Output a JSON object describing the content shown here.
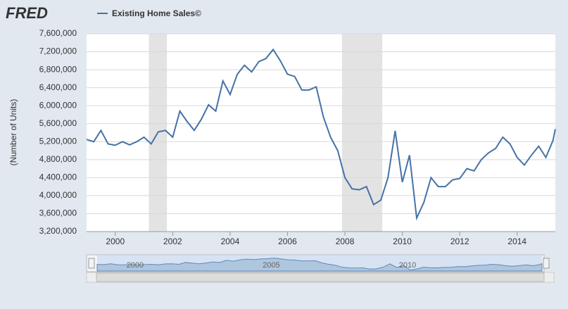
{
  "logo": "FRED",
  "chart_data": {
    "type": "line",
    "legend": "Existing Home Sales©",
    "y_label": "(Number of Units)",
    "series": [
      {
        "name": "Existing Home Sales©",
        "color": "#4572a7",
        "x": [
          1999.0,
          1999.25,
          1999.5,
          1999.75,
          2000.0,
          2000.25,
          2000.5,
          2000.75,
          2001.0,
          2001.25,
          2001.5,
          2001.75,
          2002.0,
          2002.25,
          2002.5,
          2002.75,
          2003.0,
          2003.25,
          2003.5,
          2003.75,
          2004.0,
          2004.25,
          2004.5,
          2004.75,
          2005.0,
          2005.25,
          2005.5,
          2005.75,
          2006.0,
          2006.25,
          2006.5,
          2006.75,
          2007.0,
          2007.25,
          2007.5,
          2007.75,
          2008.0,
          2008.25,
          2008.5,
          2008.75,
          2009.0,
          2009.25,
          2009.5,
          2009.75,
          2010.0,
          2010.25,
          2010.5,
          2010.75,
          2011.0,
          2011.25,
          2011.5,
          2011.75,
          2012.0,
          2012.25,
          2012.5,
          2012.75,
          2013.0,
          2013.25,
          2013.5,
          2013.75,
          2014.0,
          2014.25,
          2014.5,
          2014.75,
          2015.0,
          2015.25,
          2015.33
        ],
        "values": [
          5250000,
          5200000,
          5450000,
          5150000,
          5120000,
          5200000,
          5130000,
          5200000,
          5300000,
          5150000,
          5420000,
          5450000,
          5300000,
          5880000,
          5650000,
          5450000,
          5700000,
          6020000,
          5880000,
          6550000,
          6250000,
          6700000,
          6900000,
          6750000,
          6980000,
          7050000,
          7250000,
          7000000,
          6700000,
          6650000,
          6350000,
          6350000,
          6420000,
          5750000,
          5300000,
          5000000,
          4400000,
          4150000,
          4130000,
          4200000,
          3800000,
          3900000,
          4400000,
          5440000,
          4300000,
          4900000,
          3500000,
          3850000,
          4400000,
          4200000,
          4200000,
          4350000,
          4380000,
          4600000,
          4550000,
          4800000,
          4950000,
          5050000,
          5300000,
          5150000,
          4850000,
          4680000,
          4900000,
          5100000,
          4850000,
          5230000,
          5480000
        ]
      }
    ],
    "recessions": [
      [
        2001.17,
        2001.8
      ],
      [
        2007.9,
        2009.3
      ]
    ],
    "xlim": [
      1999,
      2015.33
    ],
    "xticks": [
      2000,
      2002,
      2004,
      2006,
      2008,
      2010,
      2012,
      2014
    ],
    "ylim": [
      3200000,
      7600000
    ],
    "yticks": [
      {
        "value": 3200000,
        "label": "3,200,000"
      },
      {
        "value": 3600000,
        "label": "3,600,000"
      },
      {
        "value": 4000000,
        "label": "4,000,000"
      },
      {
        "value": 4400000,
        "label": "4,400,000"
      },
      {
        "value": 4800000,
        "label": "4,800,000"
      },
      {
        "value": 5200000,
        "label": "5,200,000"
      },
      {
        "value": 5600000,
        "label": "5,600,000"
      },
      {
        "value": 6000000,
        "label": "6,000,000"
      },
      {
        "value": 6400000,
        "label": "6,400,000"
      },
      {
        "value": 6800000,
        "label": "6,800,000"
      },
      {
        "value": 7200000,
        "label": "7,200,000"
      },
      {
        "value": 7600000,
        "label": "7,600,000"
      }
    ],
    "navigator_ticks": [
      2000,
      2005,
      2010
    ],
    "grid": true
  }
}
